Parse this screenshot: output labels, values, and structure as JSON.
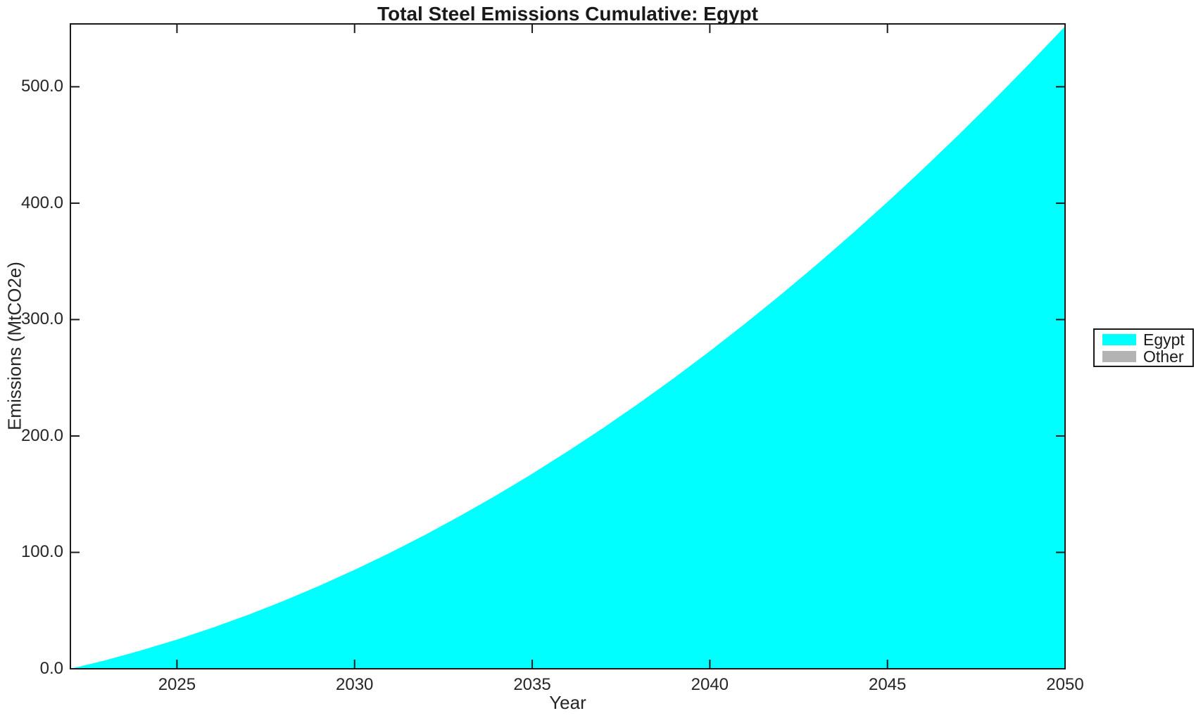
{
  "figure": {
    "background": "#ffffff",
    "text_color": "#262626",
    "axis_color": "#1a1a1a"
  },
  "chart_data": {
    "type": "area",
    "title": "Total Steel Emissions Cumulative: Egypt",
    "xlabel": "Year",
    "ylabel": "Emissions (MtCO2e)",
    "xlim": [
      2022,
      2050
    ],
    "ylim": [
      0,
      554
    ],
    "grid": false,
    "legend_position": "right-outside",
    "x_ticks": [
      2025,
      2030,
      2035,
      2040,
      2045,
      2050
    ],
    "x_tick_labels": [
      "2025",
      "2030",
      "2035",
      "2040",
      "2045",
      "2050"
    ],
    "y_ticks": [
      0,
      100,
      200,
      300,
      400,
      500
    ],
    "y_tick_labels": [
      "0.0",
      "100.0",
      "200.0",
      "300.0",
      "400.0",
      "500.0"
    ],
    "x": [
      2022,
      2023,
      2024,
      2025,
      2026,
      2027,
      2028,
      2029,
      2030,
      2031,
      2032,
      2033,
      2034,
      2035,
      2036,
      2037,
      2038,
      2039,
      2040,
      2041,
      2042,
      2043,
      2044,
      2045,
      2046,
      2047,
      2048,
      2049,
      2050
    ],
    "series": [
      {
        "name": "Egypt",
        "color": "#00FFFF",
        "values": [
          0.0,
          7.4,
          15.8,
          25.1,
          35.3,
          46.3,
          58.3,
          71.2,
          85.0,
          99.7,
          115.3,
          131.8,
          149.2,
          167.5,
          186.8,
          206.9,
          228.0,
          250.0,
          272.9,
          296.7,
          321.4,
          347.0,
          373.5,
          401.0,
          429.3,
          458.6,
          488.8,
          519.9,
          551.9
        ]
      },
      {
        "name": "Other",
        "color": "#B3B3B3",
        "values": [
          0,
          0,
          0,
          0,
          0,
          0,
          0,
          0,
          0,
          0,
          0,
          0,
          0,
          0,
          0,
          0,
          0,
          0,
          0,
          0,
          0,
          0,
          0,
          0,
          0,
          0,
          0,
          0,
          0
        ]
      }
    ]
  }
}
